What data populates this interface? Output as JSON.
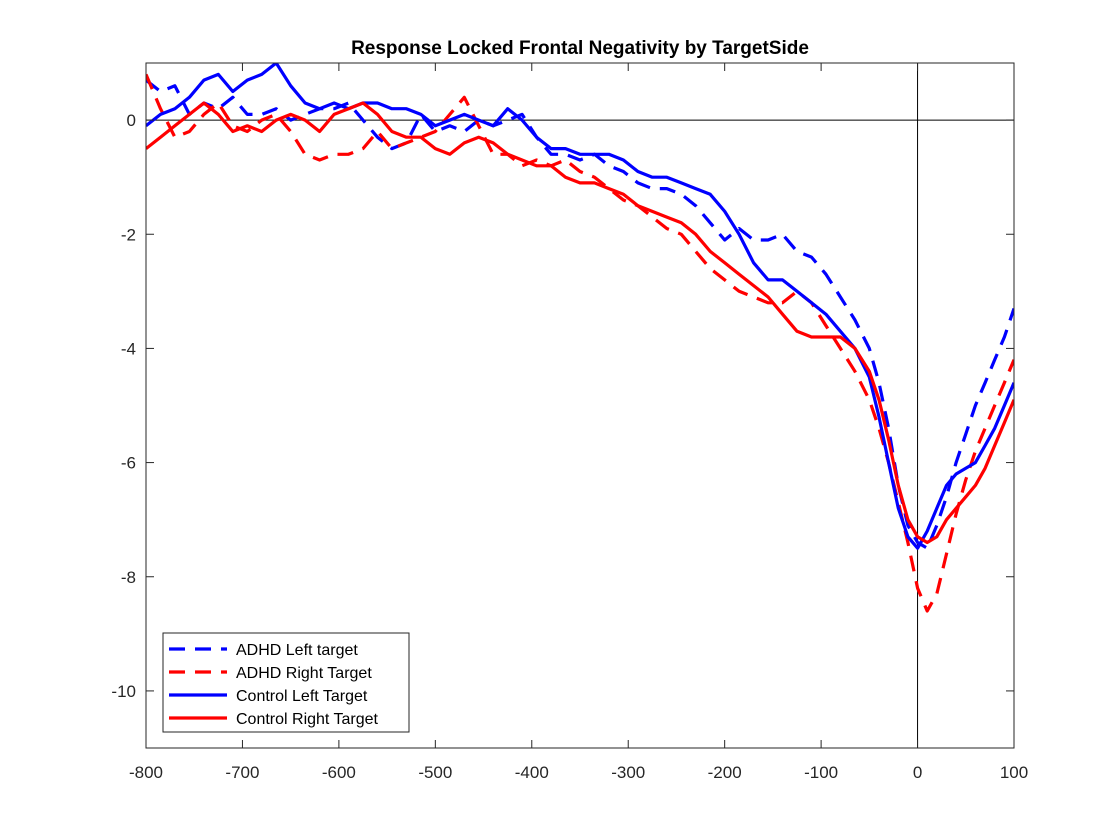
{
  "chart_data": {
    "type": "line",
    "title": "Response Locked Frontal Negativity by TargetSide",
    "xlabel": "",
    "ylabel": "",
    "xlim": [
      -800,
      100
    ],
    "ylim": [
      -11,
      1
    ],
    "xticks": [
      -800,
      -700,
      -600,
      -500,
      -400,
      -300,
      -200,
      -100,
      0,
      100
    ],
    "yticks": [
      -10,
      -8,
      -6,
      -4,
      -2,
      0
    ],
    "reference_lines": {
      "x": 0,
      "y": 0
    },
    "grid": false,
    "legend_position": "bottom-left",
    "series": [
      {
        "name": "ADHD Left target",
        "color": "#0000ff",
        "style": "dashed",
        "x": [
          -800,
          -785,
          -770,
          -755,
          -740,
          -725,
          -710,
          -695,
          -680,
          -665,
          -650,
          -635,
          -620,
          -605,
          -590,
          -575,
          -560,
          -545,
          -530,
          -515,
          -500,
          -485,
          -470,
          -455,
          -440,
          -425,
          -410,
          -395,
          -380,
          -365,
          -350,
          -335,
          -320,
          -305,
          -290,
          -275,
          -260,
          -245,
          -230,
          -215,
          -200,
          -185,
          -170,
          -155,
          -140,
          -125,
          -110,
          -95,
          -80,
          -65,
          -50,
          -40,
          -30,
          -20,
          -10,
          0,
          10,
          20,
          30,
          40,
          50,
          60,
          70,
          80,
          90,
          100
        ],
        "y": [
          0.7,
          0.5,
          0.6,
          0.1,
          0.3,
          0.2,
          0.4,
          0.1,
          0.1,
          0.2,
          0.0,
          0.1,
          0.2,
          0.2,
          0.3,
          0.0,
          -0.3,
          -0.5,
          -0.4,
          0.1,
          -0.2,
          -0.1,
          -0.2,
          0.0,
          -0.1,
          0.0,
          0.1,
          -0.3,
          -0.6,
          -0.6,
          -0.7,
          -0.6,
          -0.8,
          -0.9,
          -1.1,
          -1.2,
          -1.2,
          -1.3,
          -1.5,
          -1.8,
          -2.1,
          -1.9,
          -2.1,
          -2.1,
          -2.0,
          -2.3,
          -2.4,
          -2.7,
          -3.1,
          -3.5,
          -4.0,
          -4.6,
          -5.4,
          -6.4,
          -7.1,
          -7.4,
          -7.5,
          -7.1,
          -6.6,
          -6.0,
          -5.5,
          -5.0,
          -4.6,
          -4.2,
          -3.8,
          -3.3
        ]
      },
      {
        "name": "ADHD Right Target",
        "color": "#ff0000",
        "style": "dashed",
        "x": [
          -800,
          -785,
          -770,
          -755,
          -740,
          -725,
          -710,
          -695,
          -680,
          -665,
          -650,
          -635,
          -620,
          -605,
          -590,
          -575,
          -560,
          -545,
          -530,
          -515,
          -500,
          -485,
          -470,
          -455,
          -440,
          -425,
          -410,
          -395,
          -380,
          -365,
          -350,
          -335,
          -320,
          -305,
          -290,
          -275,
          -260,
          -245,
          -230,
          -215,
          -200,
          -185,
          -170,
          -155,
          -140,
          -125,
          -110,
          -95,
          -80,
          -65,
          -50,
          -40,
          -30,
          -20,
          -10,
          0,
          10,
          20,
          30,
          40,
          50,
          60,
          70,
          80,
          90,
          100
        ],
        "y": [
          0.8,
          0.2,
          -0.3,
          -0.2,
          0.1,
          0.3,
          -0.1,
          -0.2,
          0.0,
          0.1,
          -0.2,
          -0.6,
          -0.7,
          -0.6,
          -0.6,
          -0.5,
          -0.2,
          -0.5,
          -0.4,
          -0.3,
          -0.2,
          0.1,
          0.4,
          -0.1,
          -0.6,
          -0.6,
          -0.8,
          -0.7,
          -0.8,
          -0.7,
          -0.9,
          -1.0,
          -1.2,
          -1.4,
          -1.5,
          -1.7,
          -1.9,
          -2.0,
          -2.3,
          -2.6,
          -2.8,
          -3.0,
          -3.1,
          -3.2,
          -3.2,
          -3.0,
          -3.2,
          -3.6,
          -4.0,
          -4.4,
          -4.9,
          -5.4,
          -6.0,
          -6.7,
          -7.4,
          -8.2,
          -8.6,
          -8.3,
          -7.6,
          -6.9,
          -6.3,
          -5.8,
          -5.4,
          -5.0,
          -4.6,
          -4.2
        ]
      },
      {
        "name": "Control Left Target",
        "color": "#0000ff",
        "style": "solid",
        "x": [
          -800,
          -785,
          -770,
          -755,
          -740,
          -725,
          -710,
          -695,
          -680,
          -665,
          -650,
          -635,
          -620,
          -605,
          -590,
          -575,
          -560,
          -545,
          -530,
          -515,
          -500,
          -485,
          -470,
          -455,
          -440,
          -425,
          -410,
          -395,
          -380,
          -365,
          -350,
          -335,
          -320,
          -305,
          -290,
          -275,
          -260,
          -245,
          -230,
          -215,
          -200,
          -185,
          -170,
          -155,
          -140,
          -125,
          -110,
          -95,
          -80,
          -65,
          -50,
          -40,
          -30,
          -20,
          -10,
          0,
          10,
          20,
          30,
          40,
          50,
          60,
          70,
          80,
          90,
          100
        ],
        "y": [
          -0.1,
          0.1,
          0.2,
          0.4,
          0.7,
          0.8,
          0.5,
          0.7,
          0.8,
          1.0,
          0.6,
          0.3,
          0.2,
          0.3,
          0.2,
          0.3,
          0.3,
          0.2,
          0.2,
          0.1,
          -0.1,
          0.0,
          0.1,
          0.0,
          -0.1,
          0.2,
          0.0,
          -0.3,
          -0.5,
          -0.5,
          -0.6,
          -0.6,
          -0.6,
          -0.7,
          -0.9,
          -1.0,
          -1.0,
          -1.1,
          -1.2,
          -1.3,
          -1.6,
          -2.0,
          -2.5,
          -2.8,
          -2.8,
          -3.0,
          -3.2,
          -3.4,
          -3.7,
          -4.0,
          -4.5,
          -5.2,
          -6.0,
          -6.8,
          -7.3,
          -7.5,
          -7.2,
          -6.8,
          -6.4,
          -6.2,
          -6.1,
          -6.0,
          -5.7,
          -5.4,
          -5.0,
          -4.6
        ]
      },
      {
        "name": "Control Right Target",
        "color": "#ff0000",
        "style": "solid",
        "x": [
          -800,
          -785,
          -770,
          -755,
          -740,
          -725,
          -710,
          -695,
          -680,
          -665,
          -650,
          -635,
          -620,
          -605,
          -590,
          -575,
          -560,
          -545,
          -530,
          -515,
          -500,
          -485,
          -470,
          -455,
          -440,
          -425,
          -410,
          -395,
          -380,
          -365,
          -350,
          -335,
          -320,
          -305,
          -290,
          -275,
          -260,
          -245,
          -230,
          -215,
          -200,
          -185,
          -170,
          -155,
          -140,
          -125,
          -110,
          -95,
          -80,
          -65,
          -50,
          -40,
          -30,
          -20,
          -10,
          0,
          10,
          20,
          30,
          40,
          50,
          60,
          70,
          80,
          90,
          100
        ],
        "y": [
          -0.5,
          -0.3,
          -0.1,
          0.1,
          0.3,
          0.1,
          -0.2,
          -0.1,
          -0.2,
          0.0,
          0.1,
          0.0,
          -0.2,
          0.1,
          0.2,
          0.3,
          0.1,
          -0.2,
          -0.3,
          -0.3,
          -0.5,
          -0.6,
          -0.4,
          -0.3,
          -0.4,
          -0.6,
          -0.7,
          -0.8,
          -0.8,
          -1.0,
          -1.1,
          -1.1,
          -1.2,
          -1.3,
          -1.5,
          -1.6,
          -1.7,
          -1.8,
          -2.0,
          -2.3,
          -2.5,
          -2.7,
          -2.9,
          -3.1,
          -3.4,
          -3.7,
          -3.8,
          -3.8,
          -3.8,
          -4.0,
          -4.4,
          -4.9,
          -5.6,
          -6.4,
          -7.0,
          -7.3,
          -7.4,
          -7.3,
          -7.0,
          -6.8,
          -6.6,
          -6.4,
          -6.1,
          -5.7,
          -5.3,
          -4.9
        ]
      }
    ]
  }
}
